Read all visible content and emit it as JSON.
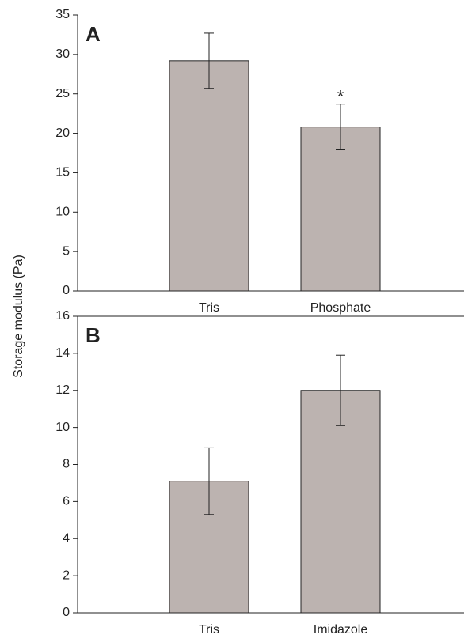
{
  "ylabel": "Storage modulus (Pa)",
  "chart_data": [
    {
      "type": "bar",
      "panel_label": "A",
      "categories": [
        "Tris",
        "Phosphate"
      ],
      "values": [
        29.2,
        20.8
      ],
      "errors": [
        3.5,
        2.9
      ],
      "annotation": "*",
      "color": "#bcb3b0",
      "ylim": [
        0,
        35
      ],
      "yticks": [
        0,
        5,
        10,
        15,
        20,
        25,
        30,
        35
      ]
    },
    {
      "type": "bar",
      "panel_label": "B",
      "categories": [
        "Tris",
        "Imidazole"
      ],
      "values": [
        7.1,
        12.0
      ],
      "errors": [
        1.8,
        1.9
      ],
      "color": "#bcb3b0",
      "ylim": [
        0,
        16
      ],
      "yticks": [
        0,
        2,
        4,
        6,
        8,
        10,
        12,
        14,
        16
      ]
    }
  ]
}
